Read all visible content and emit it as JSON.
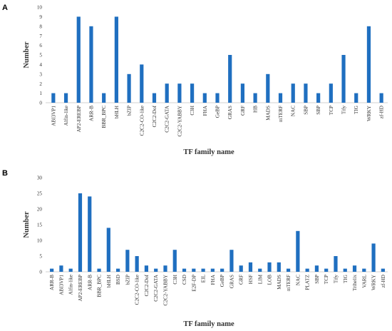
{
  "chart_data": [
    {
      "type": "bar",
      "panel_label": "A",
      "ylabel": "Number",
      "xlabel": "TF family name",
      "ylim": [
        0,
        10
      ],
      "yticks": [
        0,
        1,
        2,
        3,
        4,
        5,
        6,
        7,
        8,
        9,
        10
      ],
      "grid": false,
      "color": "#1f6fc0",
      "categories": [
        "ABI3VP1",
        "Alfin-like",
        "AP2-EREBP",
        "ARR-B",
        "BBR_BPC",
        "bHLH",
        "bZIP",
        "C2C2-CO-like",
        "C2C2-Dof",
        "C2C2-GATA",
        "C2C2-YABBY",
        "C3H",
        "FHA",
        "GeBP",
        "GRAS",
        "GRF",
        "HB",
        "MADS",
        "mTERF",
        "NAC",
        "SBP",
        "SBP",
        "TCP",
        "Tify",
        "TIG",
        "WRKY",
        "zf-HD"
      ],
      "values": [
        1,
        1,
        9,
        8,
        1,
        9,
        3,
        4,
        1,
        2,
        2,
        2,
        1,
        1,
        5,
        2,
        1,
        3,
        1,
        2,
        2,
        1,
        2,
        5,
        1,
        8,
        1
      ]
    },
    {
      "type": "bar",
      "panel_label": "B",
      "ylabel": "Number",
      "xlabel": "TF family name",
      "ylim": [
        0,
        30
      ],
      "yticks": [
        0,
        5,
        10,
        15,
        20,
        25,
        30
      ],
      "grid": false,
      "color": "#1f6fc0",
      "categories": [
        "ARR-B",
        "ABI3VP1",
        "Alfin-like",
        "AP2-EREBP",
        "ARR-B",
        "BBR_BPC",
        "bHLH",
        "BSD",
        "bZIP",
        "C2C2-CO-like",
        "C2C2-Dof",
        "C2C2-GATA",
        "C2C2-YABBY",
        "C3H",
        "CSD",
        "E2F-DP",
        "EIL",
        "FHA",
        "GeBP",
        "GRAS",
        "GRF",
        "HSF",
        "LIM",
        "LOB",
        "MADS",
        "mTERF",
        "NAC",
        "PLATZ",
        "SBP",
        "TCP",
        "Tify",
        "TIG",
        "Trihelix",
        "VARL",
        "WRKY",
        "zf-HD"
      ],
      "values": [
        1,
        2,
        1,
        25,
        24,
        1,
        14,
        1,
        7,
        5,
        2,
        1,
        2,
        7,
        1,
        1,
        1,
        1,
        1,
        7,
        2,
        3,
        1,
        3,
        3,
        1,
        13,
        1,
        2,
        1,
        5,
        1,
        2,
        1,
        9,
        1
      ]
    }
  ]
}
